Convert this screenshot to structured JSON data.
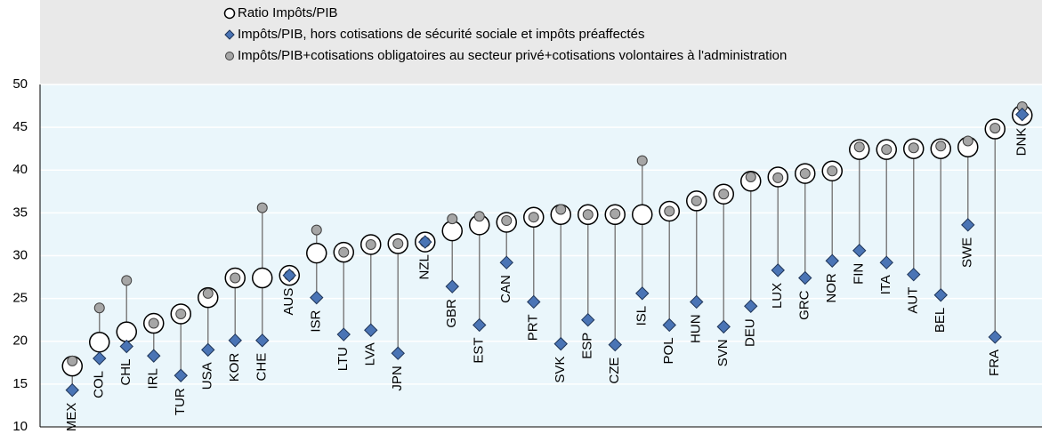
{
  "chart_data": {
    "type": "dot",
    "categories": [
      "MEX",
      "COL",
      "CHL",
      "IRL",
      "TUR",
      "USA",
      "KOR",
      "CHE",
      "AUS",
      "ISR",
      "LTU",
      "LVA",
      "JPN",
      "NZL",
      "GBR",
      "EST",
      "CAN",
      "PRT",
      "SVK",
      "ESP",
      "CZE",
      "ISL",
      "POL",
      "HUN",
      "SVN",
      "DEU",
      "LUX",
      "GRC",
      "NOR",
      "FIN",
      "ITA",
      "AUT",
      "BEL",
      "SWE",
      "FRA",
      "DNK"
    ],
    "series": [
      {
        "name": "Ratio Impôts/PIB",
        "color": "#ffffff",
        "marker": "circle",
        "values": [
          17.1,
          19.9,
          21.1,
          22.1,
          23.2,
          25.1,
          27.4,
          27.4,
          27.7,
          30.3,
          30.4,
          31.3,
          31.4,
          31.6,
          32.9,
          33.6,
          33.9,
          34.5,
          34.8,
          34.8,
          34.8,
          34.8,
          35.2,
          36.4,
          37.2,
          38.7,
          39.2,
          39.6,
          39.9,
          42.4,
          42.4,
          42.5,
          42.5,
          42.7,
          44.8,
          46.4
        ]
      },
      {
        "name": "Impôts/PIB, hors cotisations de sécurité sociale et impôts préaffectés",
        "color": "#4a74b5",
        "marker": "diamond",
        "values": [
          14.3,
          18.0,
          19.4,
          18.3,
          16.0,
          19.0,
          20.1,
          20.1,
          27.7,
          25.1,
          20.8,
          21.3,
          18.6,
          31.6,
          26.4,
          21.9,
          29.2,
          24.6,
          19.7,
          22.5,
          19.6,
          25.6,
          21.9,
          24.6,
          21.7,
          24.1,
          28.3,
          27.4,
          29.4,
          30.6,
          29.2,
          27.8,
          25.4,
          33.6,
          20.5,
          46.5
        ]
      },
      {
        "name": "Impôts/PIB+cotisations obligatoires au secteur privé+cotisations volontaires à l'administration",
        "color": "#a6a6a6",
        "marker": "circle",
        "values": [
          17.7,
          23.9,
          27.1,
          22.1,
          23.2,
          25.6,
          27.4,
          35.6,
          27.7,
          33.0,
          30.4,
          31.3,
          31.4,
          31.6,
          34.3,
          34.6,
          34.1,
          34.5,
          35.4,
          34.8,
          34.9,
          41.1,
          35.2,
          36.4,
          37.2,
          39.2,
          39.1,
          39.6,
          39.9,
          42.7,
          42.4,
          42.6,
          42.8,
          43.4,
          44.9,
          47.4
        ]
      }
    ],
    "ylim": [
      10,
      50
    ],
    "yticks": [
      10,
      15,
      20,
      25,
      30,
      35,
      40,
      45,
      50
    ],
    "grid": true
  }
}
